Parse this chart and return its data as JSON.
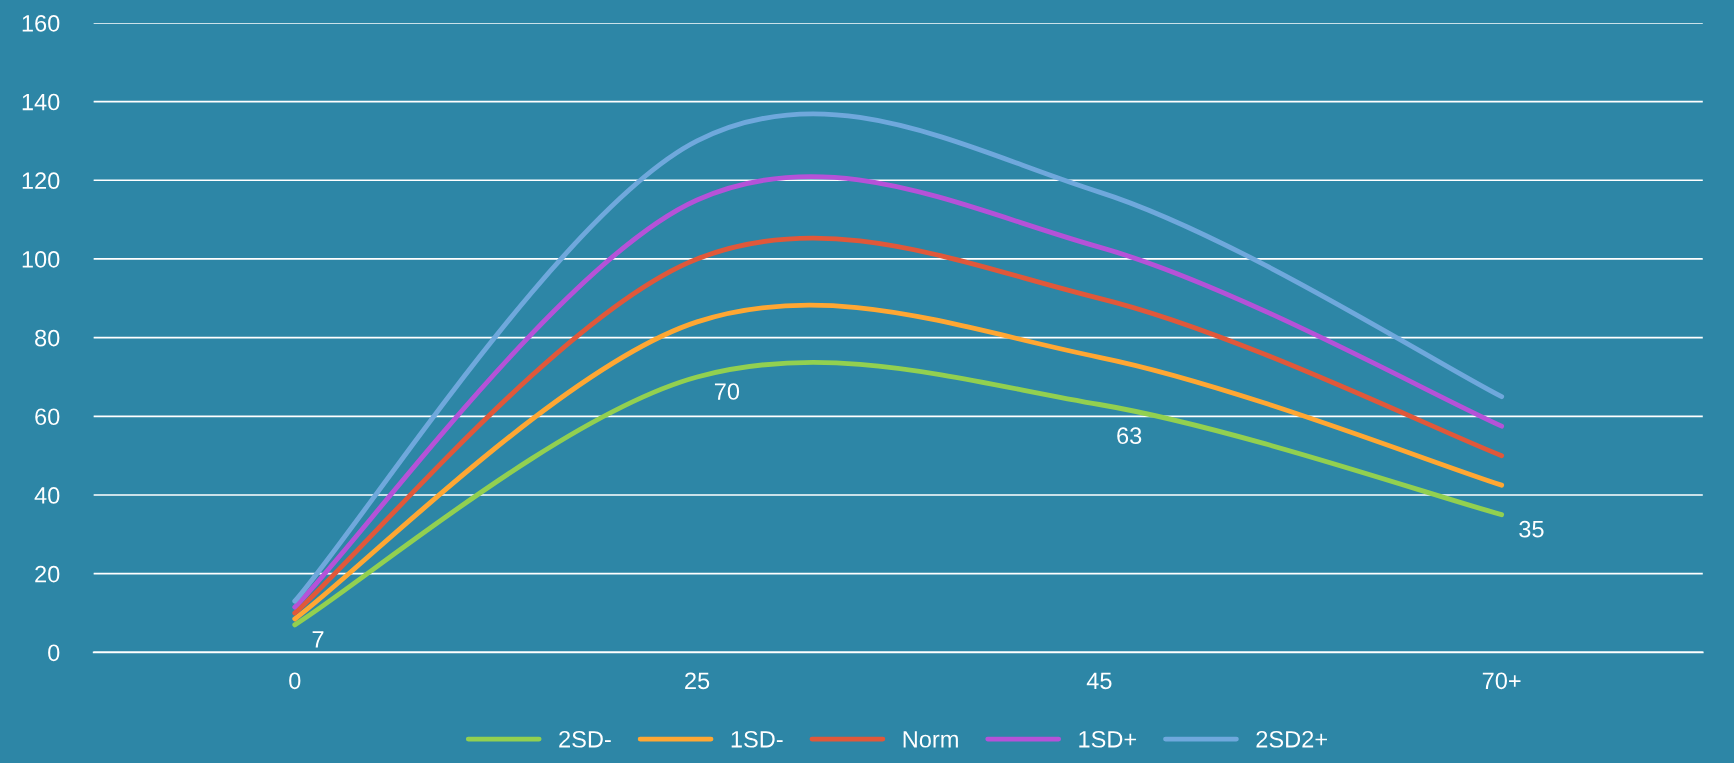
{
  "chart_data": {
    "type": "line",
    "categories": [
      "0",
      "25",
      "45",
      "70+"
    ],
    "series": [
      {
        "name": "2SD-",
        "color": "#92d050",
        "values": [
          7,
          70,
          63,
          35
        ],
        "value_labels": [
          "7",
          "70",
          "63",
          "35"
        ]
      },
      {
        "name": "1SD-",
        "color": "#ffa733",
        "values": [
          8.5,
          84,
          75,
          42.5
        ]
      },
      {
        "name": "Norm",
        "color": "#e0583a",
        "values": [
          10,
          100,
          90,
          50
        ]
      },
      {
        "name": "1SD+",
        "color": "#b552d8",
        "values": [
          11.5,
          115,
          103,
          57.5
        ]
      },
      {
        "name": "2SD2+",
        "color": "#6fa8dc",
        "values": [
          13,
          130,
          117,
          65
        ]
      }
    ],
    "ylim": [
      0,
      160
    ],
    "yticks": [
      0,
      20,
      40,
      60,
      80,
      100,
      120,
      140,
      160
    ],
    "grid": "y",
    "legend": "bottom",
    "marker": "none",
    "line_style": "solid"
  }
}
